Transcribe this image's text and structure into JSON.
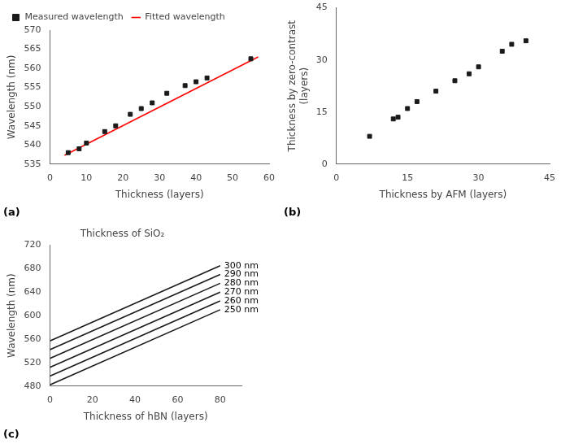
{
  "chart_data": [
    {
      "type": "scatter",
      "subtitle": "(a)",
      "xlabel": "Thickness (layers)",
      "ylabel": "Wavelength (nm)",
      "xlim": [
        0,
        60
      ],
      "ylim": [
        535,
        570
      ],
      "xticks": [
        0,
        10,
        20,
        30,
        40,
        50,
        60
      ],
      "yticks": [
        535,
        540,
        545,
        550,
        555,
        560,
        565,
        570
      ],
      "grid": false,
      "legend": "upper left",
      "series": [
        {
          "name": "Measured wavelength",
          "type": "scatter",
          "marker": "square",
          "color": "#1a1a1a",
          "x": [
            5,
            8,
            10,
            15,
            18,
            22,
            25,
            28,
            32,
            37,
            40,
            43,
            55
          ],
          "values": [
            538.0,
            539.0,
            540.5,
            543.5,
            545.0,
            548.0,
            549.5,
            551.0,
            553.5,
            555.5,
            556.5,
            557.5,
            562.5
          ]
        },
        {
          "name": "Fitted wavelength",
          "type": "line",
          "color": "#ff0000",
          "x": [
            4,
            57
          ],
          "values": [
            537.3,
            563.0
          ]
        }
      ]
    },
    {
      "type": "scatter",
      "subtitle": "(b)",
      "xlabel": "Thickness by AFM (layers)",
      "ylabel": "Thickness by zero-contrast\n(layers)",
      "xlim": [
        0,
        45
      ],
      "ylim": [
        0,
        45
      ],
      "xticks": [
        0,
        15,
        30,
        45
      ],
      "yticks": [
        0,
        15,
        30,
        45
      ],
      "grid": false,
      "marker": "square",
      "color": "#1a1a1a",
      "x": [
        7,
        12,
        13,
        15,
        17,
        21,
        25,
        28,
        30,
        35,
        37,
        40
      ],
      "values": [
        8,
        13,
        13.5,
        16,
        18,
        21,
        24,
        26,
        28,
        32.5,
        34.5,
        35.5
      ]
    },
    {
      "type": "line",
      "title": "Thickness of SiO₂",
      "subtitle": "(c)",
      "xlabel": "Thickness of hBN (layers)",
      "ylabel": "Wavelength (nm)",
      "xlim": [
        0,
        90
      ],
      "ylim": [
        480,
        720
      ],
      "xticks": [
        0,
        20,
        40,
        60,
        80
      ],
      "yticks": [
        480,
        520,
        560,
        600,
        640,
        680,
        720
      ],
      "grid": false,
      "x": [
        0,
        80
      ],
      "series": [
        {
          "name": "250 nm",
          "color": "#1a1a1a",
          "values": [
            482,
            610
          ]
        },
        {
          "name": "260 nm",
          "color": "#1a1a1a",
          "values": [
            497,
            625
          ]
        },
        {
          "name": "270 nm",
          "color": "#1a1a1a",
          "values": [
            512,
            640
          ]
        },
        {
          "name": "280 nm",
          "color": "#1a1a1a",
          "values": [
            527,
            655
          ]
        },
        {
          "name": "290 nm",
          "color": "#1a1a1a",
          "values": [
            542,
            670
          ]
        },
        {
          "name": "300 nm",
          "color": "#1a1a1a",
          "values": [
            557,
            685
          ]
        }
      ]
    }
  ]
}
